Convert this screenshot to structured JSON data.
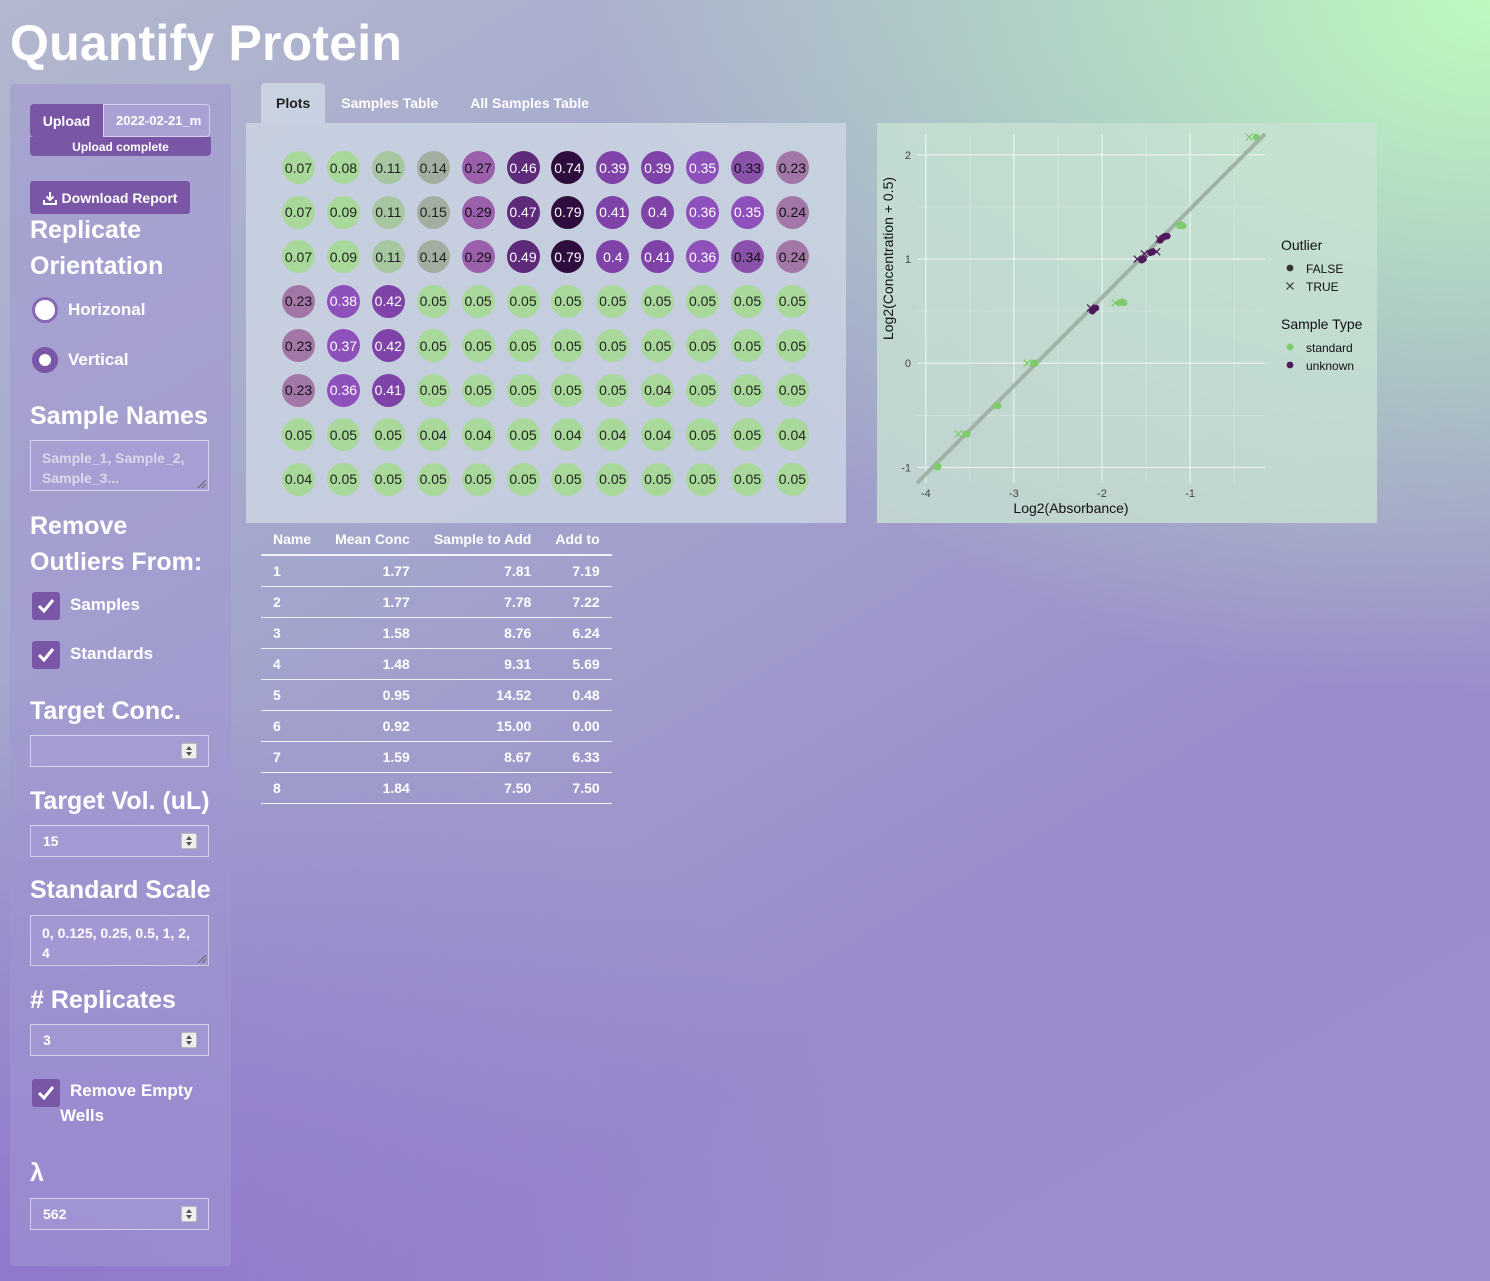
{
  "app": {
    "title": "Quantify Protein"
  },
  "sidebar": {
    "upload_button": "Upload",
    "upload_filename": "2022-02-21_m",
    "upload_status": "Upload complete",
    "download_button": "Download Report",
    "orientation_heading_1": "Replicate",
    "orientation_heading_2": "Orientation",
    "orientation_options": [
      {
        "label": "Horizonal",
        "selected": false
      },
      {
        "label": "Vertical",
        "selected": true
      }
    ],
    "sample_names_heading": "Sample Names",
    "sample_names_placeholder": "Sample_1, Sample_2, Sample_3...",
    "outliers_heading_1": "Remove",
    "outliers_heading_2": "Outliers From:",
    "outlier_options": [
      {
        "label": "Samples",
        "checked": true
      },
      {
        "label": "Standards",
        "checked": true
      }
    ],
    "target_conc_heading": "Target Conc.",
    "target_conc_value": "",
    "target_vol_heading": "Target Vol. (uL)",
    "target_vol_value": "15",
    "standard_scale_heading": "Standard Scale",
    "standard_scale_value": "0, 0.125, 0.25, 0.5, 1, 2, 4",
    "replicates_heading": "# Replicates",
    "replicates_value": "3",
    "remove_empty_label_1": "Remove Empty",
    "remove_empty_label_2": "Wells",
    "remove_empty_checked": true,
    "lambda_heading": "λ",
    "lambda_value": "562"
  },
  "tabs": [
    {
      "label": "Plots",
      "active": true
    },
    {
      "label": "Samples Table",
      "active": false
    },
    {
      "label": "All Samples Table",
      "active": false
    }
  ],
  "plate": {
    "rows": [
      [
        "0.07",
        "0.08",
        "0.11",
        "0.14",
        "0.27",
        "0.46",
        "0.74",
        "0.39",
        "0.39",
        "0.35",
        "0.33",
        "0.23"
      ],
      [
        "0.07",
        "0.09",
        "0.11",
        "0.15",
        "0.29",
        "0.47",
        "0.79",
        "0.41",
        "0.4",
        "0.36",
        "0.35",
        "0.24"
      ],
      [
        "0.07",
        "0.09",
        "0.11",
        "0.14",
        "0.29",
        "0.49",
        "0.79",
        "0.4",
        "0.41",
        "0.36",
        "0.34",
        "0.24"
      ],
      [
        "0.23",
        "0.38",
        "0.42",
        "0.05",
        "0.05",
        "0.05",
        "0.05",
        "0.05",
        "0.05",
        "0.05",
        "0.05",
        "0.05"
      ],
      [
        "0.23",
        "0.37",
        "0.42",
        "0.05",
        "0.05",
        "0.05",
        "0.05",
        "0.05",
        "0.05",
        "0.05",
        "0.05",
        "0.05"
      ],
      [
        "0.23",
        "0.36",
        "0.41",
        "0.05",
        "0.05",
        "0.05",
        "0.05",
        "0.05",
        "0.04",
        "0.05",
        "0.05",
        "0.05"
      ],
      [
        "0.05",
        "0.05",
        "0.05",
        "0.04",
        "0.04",
        "0.05",
        "0.04",
        "0.04",
        "0.04",
        "0.05",
        "0.05",
        "0.04"
      ],
      [
        "0.04",
        "0.05",
        "0.05",
        "0.05",
        "0.05",
        "0.05",
        "0.05",
        "0.05",
        "0.05",
        "0.05",
        "0.05",
        "0.05"
      ]
    ]
  },
  "chart_data": {
    "type": "scatter",
    "title": "",
    "xlabel": "Log2(Absorbance)",
    "ylabel": "Log2(Concentration + 0.5)",
    "xlim": [
      -4.1,
      -0.15
    ],
    "ylim": [
      -1.15,
      2.2
    ],
    "xticks": [
      -4,
      -3,
      -2,
      -1
    ],
    "yticks": [
      -1,
      0,
      1,
      2
    ],
    "grid": true,
    "fit_line": {
      "x": [
        -4.1,
        -0.15
      ],
      "y": [
        -1.15,
        2.2
      ]
    },
    "legend": [
      {
        "title": "Outlier",
        "entries": [
          "FALSE",
          "TRUE"
        ]
      },
      {
        "title": "Sample Type",
        "entries": [
          "standard",
          "unknown"
        ]
      }
    ],
    "series": [
      {
        "name": "standard",
        "outlier": "FALSE",
        "points": [
          [
            -3.87,
            -1.0
          ],
          [
            -3.86,
            -0.99
          ],
          [
            -3.55,
            -0.68
          ],
          [
            -3.53,
            -0.68
          ],
          [
            -3.2,
            -0.41
          ],
          [
            -3.18,
            -0.41
          ],
          [
            -2.78,
            0.0
          ],
          [
            -2.76,
            0.0
          ],
          [
            -1.8,
            0.58
          ],
          [
            -1.77,
            0.59
          ],
          [
            -1.75,
            0.58
          ],
          [
            -1.12,
            1.32
          ],
          [
            -1.1,
            1.33
          ],
          [
            -1.08,
            1.32
          ],
          [
            -0.25,
            2.17
          ]
        ]
      },
      {
        "name": "standard",
        "outlier": "TRUE",
        "points": [
          [
            -3.63,
            -0.68
          ],
          [
            -2.85,
            0.0
          ],
          [
            -1.85,
            0.58
          ],
          [
            -0.33,
            2.17
          ]
        ]
      },
      {
        "name": "unknown",
        "outlier": "FALSE",
        "points": [
          [
            -2.11,
            0.5
          ],
          [
            -2.09,
            0.52
          ],
          [
            -2.07,
            0.53
          ],
          [
            -1.55,
            0.99
          ],
          [
            -1.53,
            1.0
          ],
          [
            -1.45,
            1.06
          ],
          [
            -1.43,
            1.07
          ],
          [
            -1.34,
            1.18
          ],
          [
            -1.32,
            1.2
          ],
          [
            -1.3,
            1.21
          ],
          [
            -1.28,
            1.22
          ],
          [
            -1.26,
            1.22
          ]
        ]
      },
      {
        "name": "unknown",
        "outlier": "TRUE",
        "points": [
          [
            -2.13,
            0.53
          ],
          [
            -1.6,
            1.0
          ],
          [
            -1.52,
            1.05
          ],
          [
            -1.38,
            1.07
          ],
          [
            -1.35,
            1.19
          ]
        ]
      }
    ],
    "colors": {
      "standard": "#7ecb6a",
      "unknown": "#4f1a5c",
      "fit": "#9aaa9e"
    }
  },
  "results_table": {
    "columns": [
      "Name",
      "Mean Conc",
      "Sample to Add",
      "Add to"
    ],
    "rows": [
      [
        "1",
        "1.77",
        "7.81",
        "7.19"
      ],
      [
        "2",
        "1.77",
        "7.78",
        "7.22"
      ],
      [
        "3",
        "1.58",
        "8.76",
        "6.24"
      ],
      [
        "4",
        "1.48",
        "9.31",
        "5.69"
      ],
      [
        "5",
        "0.95",
        "14.52",
        "0.48"
      ],
      [
        "6",
        "0.92",
        "15.00",
        "0.00"
      ],
      [
        "7",
        "1.59",
        "8.67",
        "6.33"
      ],
      [
        "8",
        "1.84",
        "7.50",
        "7.50"
      ]
    ]
  }
}
